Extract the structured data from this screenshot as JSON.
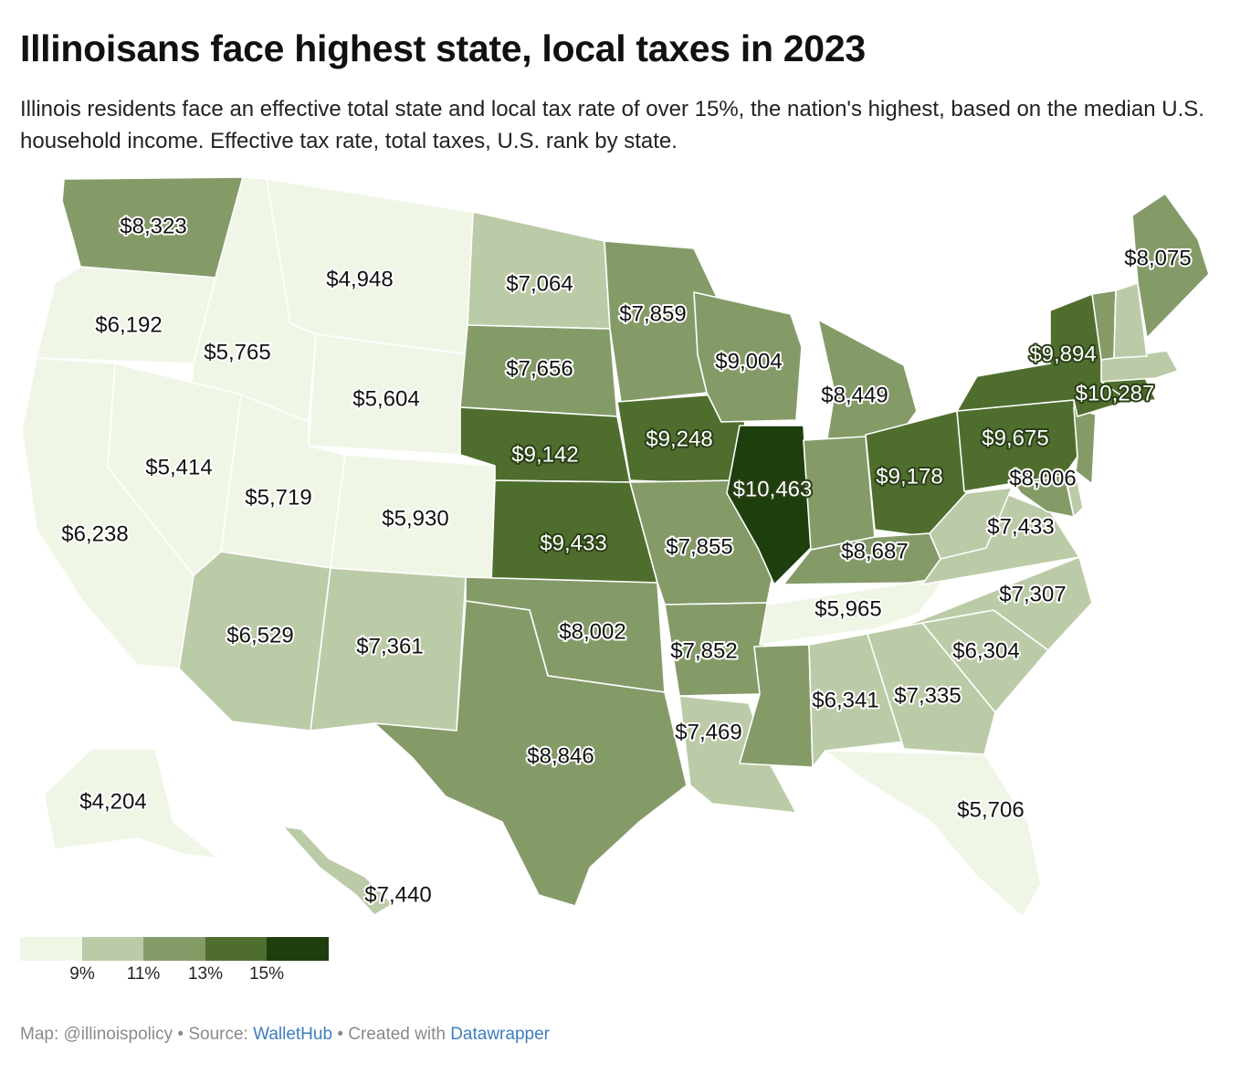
{
  "title": "Illinoisans face highest state, local taxes in 2023",
  "subtitle": "Illinois residents face an effective total state and local tax rate of over 15%, the nation's highest, based on the median U.S. household income. Effective tax rate, total taxes, U.S. rank by state.",
  "colors": {
    "tier0": "#eff6e6",
    "tier1": "#bccba7",
    "tier2": "#849b68",
    "tier3": "#4f6e2e",
    "tier4": "#1e3f0d",
    "border": "#ffffff"
  },
  "legend": {
    "swatches": [
      "tier0",
      "tier1",
      "tier2",
      "tier3",
      "tier4"
    ],
    "ticks": [
      "9%",
      "11%",
      "13%",
      "15%"
    ]
  },
  "states": [
    {
      "id": "WA",
      "value": "$8,323",
      "tier": 2
    },
    {
      "id": "OR",
      "value": "$6,192",
      "tier": 0
    },
    {
      "id": "CA",
      "value": "$6,238",
      "tier": 0
    },
    {
      "id": "ID",
      "value": "$5,765",
      "tier": 0
    },
    {
      "id": "NV",
      "value": "$5,414",
      "tier": 0
    },
    {
      "id": "MT",
      "value": "$4,948",
      "tier": 0
    },
    {
      "id": "WY",
      "value": "$5,604",
      "tier": 0
    },
    {
      "id": "UT",
      "value": "$5,719",
      "tier": 0
    },
    {
      "id": "CO",
      "value": "$5,930",
      "tier": 0
    },
    {
      "id": "AZ",
      "value": "$6,529",
      "tier": 1
    },
    {
      "id": "NM",
      "value": "$7,361",
      "tier": 1
    },
    {
      "id": "ND",
      "value": "$7,064",
      "tier": 1
    },
    {
      "id": "SD",
      "value": "$7,656",
      "tier": 2
    },
    {
      "id": "NE",
      "value": "$9,142",
      "tier": 3
    },
    {
      "id": "KS",
      "value": "$9,433",
      "tier": 3
    },
    {
      "id": "OK",
      "value": "$8,002",
      "tier": 2
    },
    {
      "id": "TX",
      "value": "$8,846",
      "tier": 2
    },
    {
      "id": "MN",
      "value": "$7,859",
      "tier": 2
    },
    {
      "id": "IA",
      "value": "$9,248",
      "tier": 3
    },
    {
      "id": "MO",
      "value": "$7,855",
      "tier": 2
    },
    {
      "id": "AR",
      "value": "$7,852",
      "tier": 2
    },
    {
      "id": "LA",
      "value": "$7,469",
      "tier": 1
    },
    {
      "id": "WI",
      "value": "$9,004",
      "tier": 2
    },
    {
      "id": "IL",
      "value": "$10,463",
      "tier": 4
    },
    {
      "id": "MI",
      "value": "$8,449",
      "tier": 2
    },
    {
      "id": "IN",
      "value": "",
      "tier": 2
    },
    {
      "id": "OH",
      "value": "$9,178",
      "tier": 3
    },
    {
      "id": "KY",
      "value": "$8,687",
      "tier": 2
    },
    {
      "id": "TN",
      "value": "$5,965",
      "tier": 0
    },
    {
      "id": "MS",
      "value": "",
      "tier": 2
    },
    {
      "id": "AL",
      "value": "$6,341",
      "tier": 1
    },
    {
      "id": "GA",
      "value": "$7,335",
      "tier": 1
    },
    {
      "id": "FL",
      "value": "$5,706",
      "tier": 0
    },
    {
      "id": "SC",
      "value": "$6,304",
      "tier": 1
    },
    {
      "id": "NC",
      "value": "$7,307",
      "tier": 1
    },
    {
      "id": "VA",
      "value": "$7,433",
      "tier": 1
    },
    {
      "id": "WV",
      "value": "",
      "tier": 1
    },
    {
      "id": "MD",
      "value": "$8,006",
      "tier": 2
    },
    {
      "id": "DE",
      "value": "",
      "tier": 1
    },
    {
      "id": "PA",
      "value": "$9,675",
      "tier": 3
    },
    {
      "id": "NJ",
      "value": "",
      "tier": 2
    },
    {
      "id": "NY",
      "value": "$9,894",
      "tier": 3
    },
    {
      "id": "CT",
      "value": "$10,287",
      "tier": 3
    },
    {
      "id": "MA",
      "value": "",
      "tier": 1
    },
    {
      "id": "VT",
      "value": "",
      "tier": 2
    },
    {
      "id": "NH",
      "value": "",
      "tier": 1
    },
    {
      "id": "ME",
      "value": "$8,075",
      "tier": 2
    },
    {
      "id": "AK",
      "value": "$4,204",
      "tier": 0
    },
    {
      "id": "HI",
      "value": "$7,440",
      "tier": 1
    }
  ],
  "footer": {
    "prefix": "Map: @illinoispolicy • Source: ",
    "source": "WalletHub",
    "middle": " • Created with ",
    "tool": "Datawrapper"
  }
}
